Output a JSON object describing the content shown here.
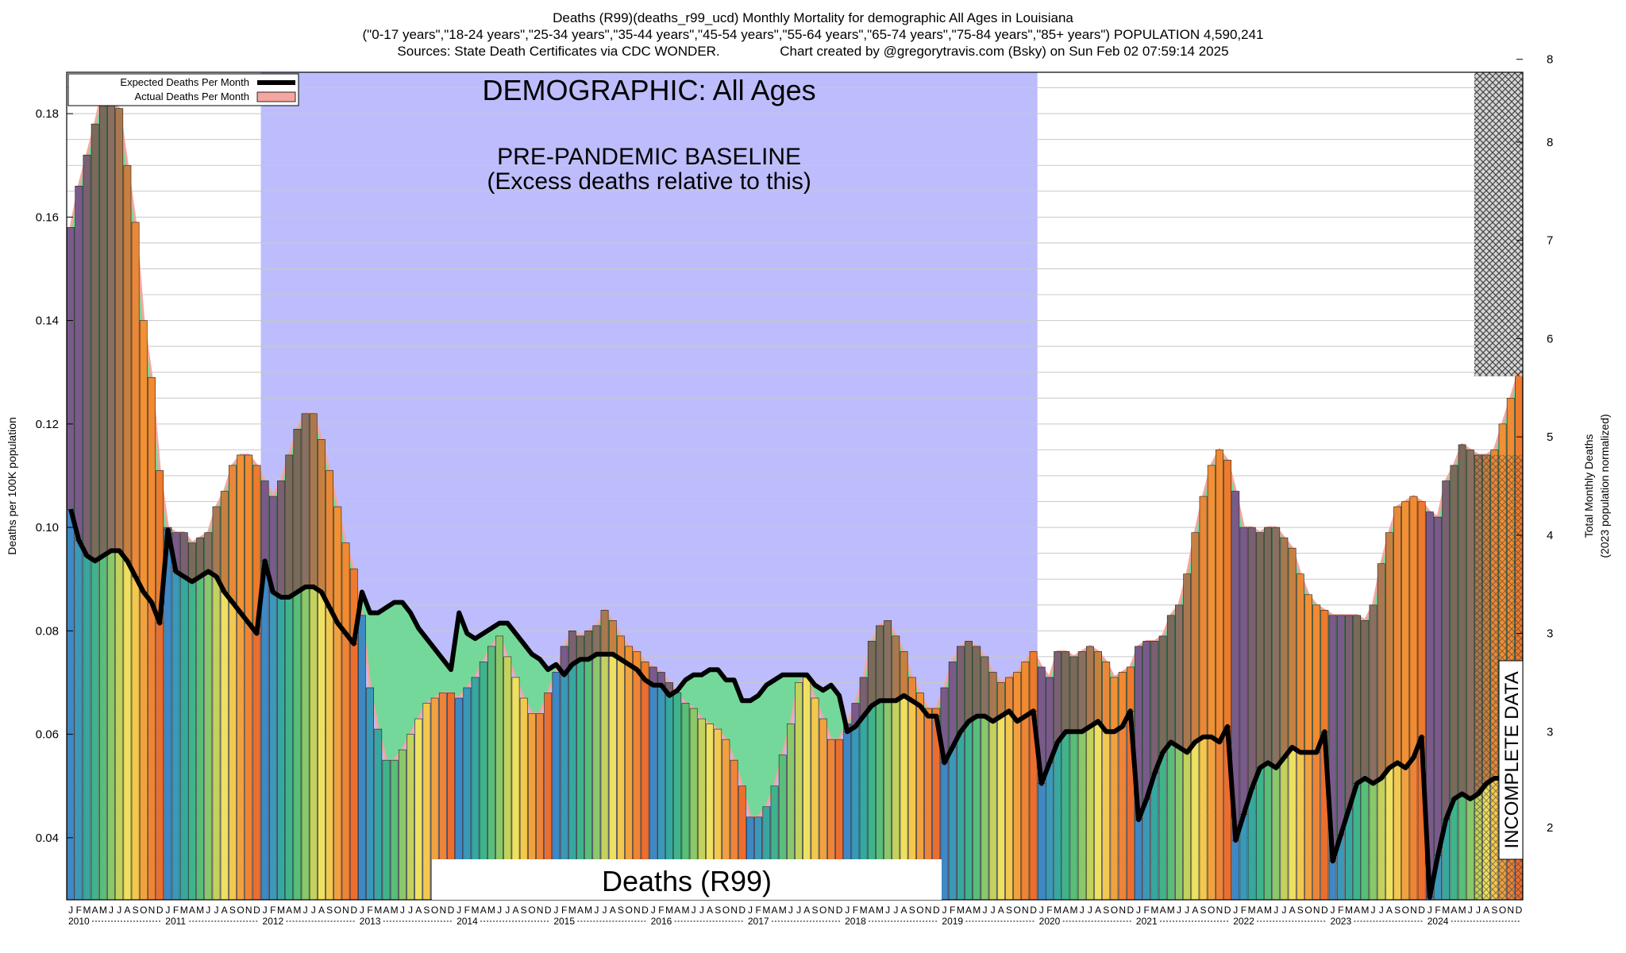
{
  "header": {
    "line1": "Deaths (R99)(deaths_r99_ucd) Monthly Mortality for demographic All Ages in Louisiana",
    "line2": "(\"0-17 years\",\"18-24 years\",\"25-34 years\",\"35-44 years\",\"45-54 years\",\"55-64 years\",\"65-74 years\",\"75-84 years\",\"85+ years\") POPULATION 4,590,241",
    "line3": "Sources: State Death Certificates via CDC WONDER.                Chart created by @gregorytravis.com (Bsky) on Sun Feb 02 07:59:14 2025"
  },
  "chart_data": {
    "type": "bar",
    "ylabel": "Deaths per 100K population",
    "y2label_line1": "Total Monthly Deaths",
    "y2label_line2": "(2023 population normalized)",
    "ylim": [
      0.028,
      0.188
    ],
    "y_ticks": [
      "0.04",
      "0.06",
      "0.08",
      "0.10",
      "0.12",
      "0.14",
      "0.16",
      "0.18"
    ],
    "y_tick_values": [
      0.04,
      0.06,
      0.08,
      0.1,
      0.12,
      0.14,
      0.16,
      0.18
    ],
    "y2_ticks": [
      "2",
      "3",
      "3",
      "4",
      "5",
      "6",
      "7",
      "8",
      "8"
    ],
    "y2_tick_values": [
      0.042,
      0.0605,
      0.0795,
      0.0985,
      0.1175,
      0.1365,
      0.1555,
      0.1745,
      0.1905
    ],
    "x_start": "2010-01",
    "month_letters": [
      "J",
      "F",
      "M",
      "A",
      "M",
      "J",
      "J",
      "A",
      "S",
      "O",
      "N",
      "D"
    ],
    "years": [
      "2010",
      "2011",
      "2012",
      "2013",
      "2014",
      "2015",
      "2016",
      "2017",
      "2018",
      "2019",
      "2020",
      "2021",
      "2022",
      "2023",
      "2024"
    ],
    "legend": [
      {
        "name": "Expected Deaths Per Month",
        "color": "#000000"
      },
      {
        "name": "Actual Deaths Per Month",
        "color": "#f4a6a0"
      }
    ],
    "baseline_label": "DEMOGRAPHIC: All Ages",
    "baseline_title": "PRE-PANDEMIC BASELINE",
    "baseline_subtitle": "(Excess deaths relative to this)",
    "bottom_label": "Deaths (R99)",
    "incomplete_label": "INCOMPLETE DATA",
    "baseline_period": [
      "2012-01",
      "2019-12"
    ],
    "incomplete_period": [
      "2024-07",
      "2024-12"
    ],
    "actual": [
      0.158,
      0.166,
      0.172,
      0.178,
      0.185,
      0.182,
      0.181,
      0.17,
      0.159,
      0.14,
      0.129,
      0.111,
      0.1,
      0.099,
      0.099,
      0.097,
      0.098,
      0.099,
      0.104,
      0.107,
      0.112,
      0.114,
      0.114,
      0.112,
      0.109,
      0.106,
      0.109,
      0.114,
      0.119,
      0.122,
      0.122,
      0.117,
      0.111,
      0.104,
      0.097,
      0.092,
      0.083,
      0.069,
      0.061,
      0.055,
      0.055,
      0.057,
      0.06,
      0.063,
      0.066,
      0.067,
      0.068,
      0.068,
      0.067,
      0.069,
      0.071,
      0.074,
      0.077,
      0.079,
      0.075,
      0.071,
      0.067,
      0.064,
      0.064,
      0.068,
      0.072,
      0.077,
      0.08,
      0.079,
      0.08,
      0.081,
      0.084,
      0.082,
      0.079,
      0.077,
      0.076,
      0.074,
      0.073,
      0.072,
      0.07,
      0.068,
      0.066,
      0.065,
      0.063,
      0.062,
      0.061,
      0.059,
      0.055,
      0.05,
      0.044,
      0.044,
      0.046,
      0.05,
      0.056,
      0.062,
      0.07,
      0.071,
      0.067,
      0.063,
      0.059,
      0.059,
      0.062,
      0.066,
      0.071,
      0.078,
      0.081,
      0.082,
      0.079,
      0.076,
      0.071,
      0.068,
      0.065,
      0.065,
      0.069,
      0.074,
      0.077,
      0.078,
      0.077,
      0.075,
      0.072,
      0.07,
      0.071,
      0.072,
      0.074,
      0.076,
      0.073,
      0.071,
      0.076,
      0.076,
      0.075,
      0.076,
      0.077,
      0.076,
      0.074,
      0.071,
      0.072,
      0.073,
      0.077,
      0.078,
      0.078,
      0.079,
      0.083,
      0.085,
      0.091,
      0.099,
      0.106,
      0.112,
      0.115,
      0.113,
      0.107,
      0.1,
      0.1,
      0.099,
      0.1,
      0.1,
      0.098,
      0.096,
      0.091,
      0.087,
      0.085,
      0.084,
      0.083,
      0.083,
      0.083,
      0.083,
      0.082,
      0.085,
      0.093,
      0.099,
      0.104,
      0.105,
      0.106,
      0.105,
      0.103,
      0.102,
      0.109,
      0.112,
      0.116,
      0.115,
      0.114,
      0.114,
      0.115,
      0.12,
      0.125,
      0.13
    ],
    "expected": [
      0.1035,
      0.0975,
      0.0945,
      0.0935,
      0.0945,
      0.0955,
      0.0955,
      0.0935,
      0.0905,
      0.0875,
      0.0855,
      0.0815,
      0.0995,
      0.0915,
      0.0905,
      0.0895,
      0.0905,
      0.0915,
      0.0905,
      0.0875,
      0.0855,
      0.0835,
      0.0815,
      0.0795,
      0.0935,
      0.0875,
      0.0865,
      0.0865,
      0.0875,
      0.0885,
      0.0885,
      0.0875,
      0.0845,
      0.0815,
      0.0795,
      0.0775,
      0.0875,
      0.0835,
      0.0835,
      0.0845,
      0.0855,
      0.0855,
      0.0835,
      0.0805,
      0.0785,
      0.0765,
      0.0745,
      0.0725,
      0.0835,
      0.0795,
      0.0785,
      0.0795,
      0.0805,
      0.0815,
      0.0815,
      0.0795,
      0.0775,
      0.0755,
      0.0745,
      0.0725,
      0.0735,
      0.0715,
      0.0735,
      0.0745,
      0.0745,
      0.0755,
      0.0755,
      0.0755,
      0.0745,
      0.0735,
      0.0725,
      0.0705,
      0.0695,
      0.0695,
      0.0675,
      0.0685,
      0.0705,
      0.0715,
      0.0715,
      0.0725,
      0.0725,
      0.0705,
      0.0705,
      0.0665,
      0.0665,
      0.0675,
      0.0695,
      0.0705,
      0.0715,
      0.0715,
      0.0715,
      0.0715,
      0.0695,
      0.0685,
      0.0695,
      0.0675,
      0.0605,
      0.0615,
      0.0635,
      0.0655,
      0.0665,
      0.0665,
      0.0665,
      0.0675,
      0.0665,
      0.0655,
      0.0635,
      0.0635,
      0.0545,
      0.0575,
      0.0605,
      0.0625,
      0.0635,
      0.0635,
      0.0625,
      0.0635,
      0.0645,
      0.0625,
      0.0635,
      0.0645,
      0.0505,
      0.0545,
      0.0585,
      0.0605,
      0.0605,
      0.0605,
      0.0615,
      0.0625,
      0.0605,
      0.0605,
      0.0615,
      0.0645,
      0.0435,
      0.0475,
      0.0525,
      0.0565,
      0.0585,
      0.0575,
      0.0565,
      0.0585,
      0.0595,
      0.0595,
      0.0585,
      0.0615,
      0.0395,
      0.0445,
      0.0495,
      0.0535,
      0.0545,
      0.0535,
      0.0555,
      0.0575,
      0.0565,
      0.0565,
      0.0565,
      0.0605,
      0.0355,
      0.0405,
      0.0455,
      0.0505,
      0.0515,
      0.0505,
      0.0515,
      0.0535,
      0.0545,
      0.0535,
      0.0555,
      0.0595,
      0.0285,
      0.0365,
      0.0435,
      0.0475,
      0.0485,
      0.0475,
      0.0485,
      0.0505,
      0.0515,
      0.0515,
      0.0525,
      0.0545
    ]
  }
}
